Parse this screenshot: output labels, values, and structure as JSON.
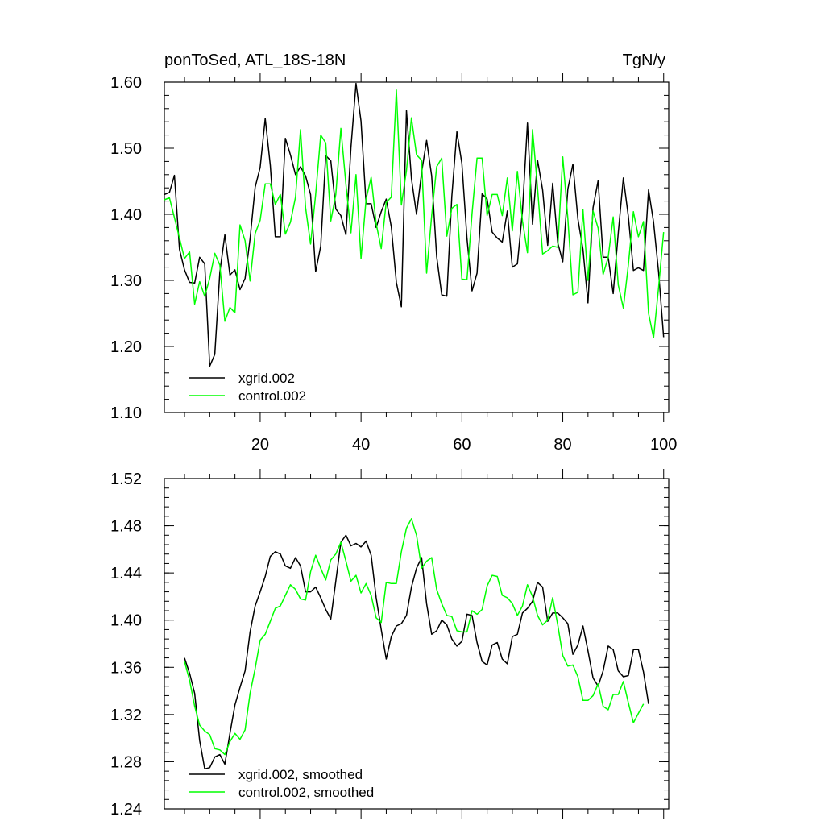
{
  "colors": {
    "series1": "#000000",
    "series2": "#00ff00",
    "background": "#ffffff"
  },
  "chart_data": [
    {
      "type": "line",
      "title": "ponToSed, ATL_18S-18N",
      "units": "TgN/y",
      "xlabel": "",
      "ylabel": "",
      "xlim": [
        1,
        101
      ],
      "ylim": [
        1.1,
        1.6
      ],
      "xticks": [
        20,
        40,
        60,
        80,
        100
      ],
      "yticks": [
        1.1,
        1.2,
        1.3,
        1.4,
        1.5,
        1.6
      ],
      "ytick_labels": [
        "1.10",
        "1.20",
        "1.30",
        "1.40",
        "1.50",
        "1.60"
      ],
      "legend_position": "bottom-left",
      "x_start": 1,
      "series": [
        {
          "name": "xgrid.002",
          "color": "#000000",
          "values": [
            1.43,
            1.433,
            1.459,
            1.347,
            1.316,
            1.297,
            1.296,
            1.335,
            1.325,
            1.17,
            1.188,
            1.313,
            1.369,
            1.308,
            1.316,
            1.286,
            1.303,
            1.363,
            1.441,
            1.471,
            1.545,
            1.474,
            1.366,
            1.366,
            1.515,
            1.49,
            1.46,
            1.472,
            1.458,
            1.43,
            1.313,
            1.352,
            1.489,
            1.481,
            1.408,
            1.398,
            1.369,
            1.501,
            1.598,
            1.541,
            1.416,
            1.416,
            1.38,
            1.404,
            1.423,
            1.381,
            1.297,
            1.26,
            1.557,
            1.454,
            1.4,
            1.463,
            1.512,
            1.458,
            1.336,
            1.278,
            1.276,
            1.427,
            1.525,
            1.477,
            1.364,
            1.284,
            1.311,
            1.431,
            1.423,
            1.373,
            1.364,
            1.358,
            1.405,
            1.32,
            1.325,
            1.405,
            1.538,
            1.385,
            1.482,
            1.437,
            1.353,
            1.447,
            1.357,
            1.328,
            1.438,
            1.476,
            1.393,
            1.347,
            1.266,
            1.41,
            1.451,
            1.335,
            1.335,
            1.28,
            1.372,
            1.455,
            1.397,
            1.315,
            1.319,
            1.315,
            1.437,
            1.388,
            1.312,
            1.214
          ]
        },
        {
          "name": "control.002",
          "color": "#00ff00",
          "values": [
            1.422,
            1.425,
            1.395,
            1.364,
            1.333,
            1.343,
            1.264,
            1.298,
            1.276,
            1.303,
            1.341,
            1.323,
            1.238,
            1.259,
            1.251,
            1.384,
            1.36,
            1.299,
            1.371,
            1.391,
            1.446,
            1.446,
            1.415,
            1.43,
            1.37,
            1.388,
            1.426,
            1.528,
            1.41,
            1.355,
            1.43,
            1.52,
            1.508,
            1.39,
            1.43,
            1.53,
            1.445,
            1.372,
            1.46,
            1.333,
            1.423,
            1.456,
            1.386,
            1.348,
            1.418,
            1.426,
            1.588,
            1.414,
            1.466,
            1.546,
            1.49,
            1.482,
            1.311,
            1.398,
            1.472,
            1.485,
            1.367,
            1.409,
            1.415,
            1.302,
            1.301,
            1.401,
            1.485,
            1.485,
            1.398,
            1.43,
            1.43,
            1.398,
            1.455,
            1.375,
            1.465,
            1.39,
            1.342,
            1.528,
            1.44,
            1.34,
            1.345,
            1.352,
            1.35,
            1.487,
            1.394,
            1.278,
            1.282,
            1.407,
            1.3,
            1.405,
            1.379,
            1.309,
            1.335,
            1.396,
            1.293,
            1.258,
            1.323,
            1.404,
            1.366,
            1.389,
            1.25,
            1.213,
            1.29,
            1.373
          ]
        }
      ]
    },
    {
      "type": "line",
      "title": "",
      "units": "",
      "xlabel": "",
      "ylabel": "",
      "xlim": [
        1,
        101
      ],
      "ylim": [
        1.24,
        1.52
      ],
      "xticks": [
        20,
        40,
        60,
        80,
        100
      ],
      "yticks": [
        1.24,
        1.28,
        1.32,
        1.36,
        1.4,
        1.44,
        1.48,
        1.52
      ],
      "ytick_labels": [
        "1.24",
        "1.28",
        "1.32",
        "1.36",
        "1.40",
        "1.44",
        "1.48",
        "1.52"
      ],
      "legend_position": "bottom-left",
      "x_start": 5,
      "series": [
        {
          "name": "xgrid.002, smoothed",
          "color": "#000000",
          "values": [
            1.368,
            1.355,
            1.338,
            1.298,
            1.274,
            1.275,
            1.284,
            1.286,
            1.278,
            1.304,
            1.328,
            1.343,
            1.357,
            1.39,
            1.412,
            1.424,
            1.437,
            1.454,
            1.458,
            1.456,
            1.446,
            1.444,
            1.453,
            1.446,
            1.424,
            1.424,
            1.428,
            1.419,
            1.409,
            1.401,
            1.433,
            1.466,
            1.472,
            1.463,
            1.465,
            1.462,
            1.467,
            1.455,
            1.419,
            1.392,
            1.367,
            1.386,
            1.395,
            1.397,
            1.404,
            1.428,
            1.444,
            1.453,
            1.414,
            1.388,
            1.391,
            1.4,
            1.396,
            1.384,
            1.378,
            1.382,
            1.405,
            1.404,
            1.381,
            1.365,
            1.362,
            1.379,
            1.381,
            1.367,
            1.363,
            1.386,
            1.388,
            1.406,
            1.41,
            1.416,
            1.432,
            1.428,
            1.399,
            1.406,
            1.406,
            1.402,
            1.397,
            1.371,
            1.379,
            1.395,
            1.374,
            1.351,
            1.344,
            1.357,
            1.378,
            1.375,
            1.357,
            1.352,
            1.353,
            1.375,
            1.375,
            1.356,
            1.329
          ]
        },
        {
          "name": "control.002, smoothed",
          "color": "#00ff00",
          "values": [
            1.365,
            1.349,
            1.327,
            1.311,
            1.306,
            1.303,
            1.291,
            1.29,
            1.286,
            1.297,
            1.304,
            1.299,
            1.307,
            1.338,
            1.359,
            1.383,
            1.388,
            1.399,
            1.41,
            1.412,
            1.421,
            1.43,
            1.426,
            1.418,
            1.417,
            1.441,
            1.455,
            1.444,
            1.434,
            1.451,
            1.456,
            1.466,
            1.45,
            1.433,
            1.438,
            1.423,
            1.431,
            1.421,
            1.402,
            1.398,
            1.432,
            1.431,
            1.431,
            1.458,
            1.478,
            1.486,
            1.472,
            1.444,
            1.45,
            1.453,
            1.426,
            1.414,
            1.404,
            1.403,
            1.391,
            1.39,
            1.39,
            1.408,
            1.405,
            1.409,
            1.429,
            1.438,
            1.437,
            1.421,
            1.419,
            1.414,
            1.404,
            1.412,
            1.43,
            1.42,
            1.404,
            1.396,
            1.4,
            1.419,
            1.396,
            1.37,
            1.361,
            1.362,
            1.352,
            1.332,
            1.332,
            1.336,
            1.346,
            1.327,
            1.324,
            1.337,
            1.337,
            1.348,
            1.33,
            1.313,
            1.321,
            1.329
          ]
        }
      ]
    }
  ]
}
